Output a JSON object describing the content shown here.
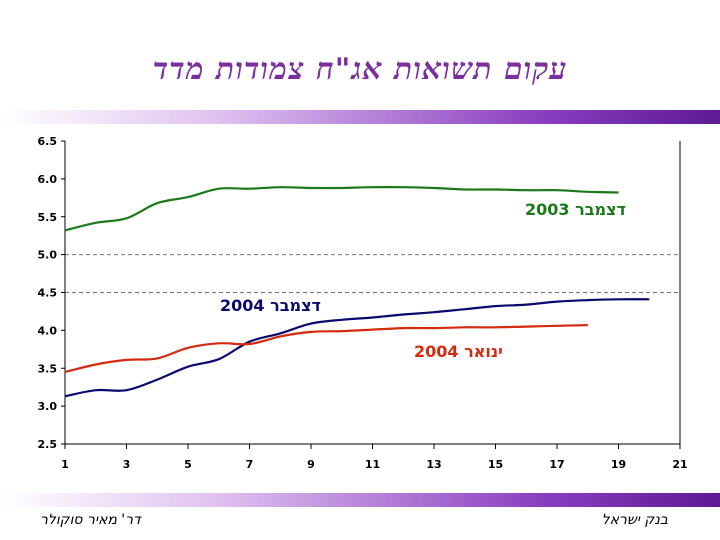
{
  "slide": {
    "title": "עקום תשואות אג\"ח צמודות מדד",
    "footer_left": "דר' מאיר סוקולר",
    "footer_right": "בנק ישראל",
    "accent_color": "#7b2f9e"
  },
  "chart_data": {
    "type": "line",
    "title": "עקום תשואות אג\"ח צמודות מדד",
    "xlim": [
      1,
      21
    ],
    "ylim": [
      2.5,
      6.5
    ],
    "x_ticks": [
      1,
      3,
      5,
      7,
      9,
      11,
      13,
      15,
      17,
      19,
      21
    ],
    "y_ticks": [
      "2.5",
      "3.0",
      "3.5",
      "4.0",
      "4.5",
      "5.0",
      "5.5",
      "6.0",
      "6.5"
    ],
    "reference_lines": [
      4.5,
      5.0
    ],
    "grid": false,
    "series": [
      {
        "name": "דצמבר 2003",
        "color": "#1a7a1a",
        "x": [
          1,
          2,
          3,
          4,
          5,
          6,
          7,
          8,
          9,
          10,
          11,
          12,
          13,
          14,
          15,
          16,
          17,
          18,
          19
        ],
        "values": [
          5.32,
          5.42,
          5.48,
          5.68,
          5.76,
          5.87,
          5.87,
          5.89,
          5.88,
          5.88,
          5.89,
          5.89,
          5.88,
          5.86,
          5.86,
          5.85,
          5.85,
          5.83,
          5.82
        ]
      },
      {
        "name": "דצמבר 2004",
        "color": "#0a0a6e",
        "x": [
          1,
          2,
          3,
          4,
          5,
          6,
          7,
          8,
          9,
          10,
          11,
          12,
          13,
          14,
          15,
          16,
          17,
          18,
          19,
          20
        ],
        "values": [
          3.13,
          3.21,
          3.21,
          3.35,
          3.52,
          3.62,
          3.85,
          3.96,
          4.09,
          4.14,
          4.17,
          4.21,
          4.24,
          4.28,
          4.32,
          4.34,
          4.38,
          4.4,
          4.41,
          4.41
        ]
      },
      {
        "name": "ינואר 2004",
        "color": "#d42a0e",
        "x": [
          1,
          2,
          3,
          4,
          5,
          6,
          7,
          8,
          9,
          10,
          11,
          12,
          13,
          14,
          15,
          16,
          17,
          18
        ],
        "values": [
          3.45,
          3.55,
          3.61,
          3.63,
          3.77,
          3.83,
          3.82,
          3.92,
          3.98,
          3.99,
          4.01,
          4.03,
          4.03,
          4.04,
          4.04,
          4.05,
          4.06,
          4.07
        ]
      }
    ]
  }
}
